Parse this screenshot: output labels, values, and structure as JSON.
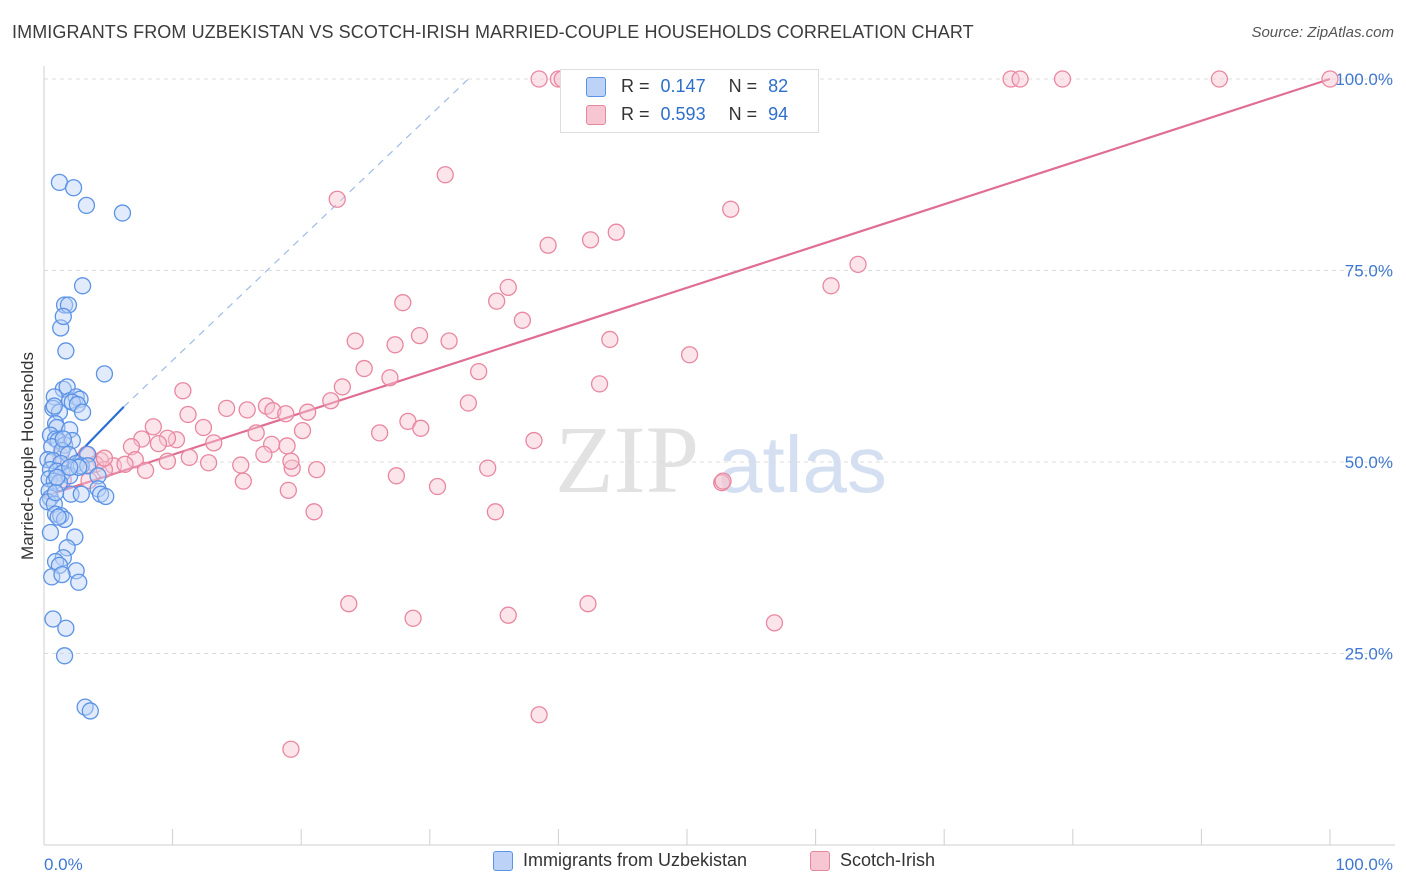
{
  "title": "IMMIGRANTS FROM UZBEKISTAN VS SCOTCH-IRISH MARRIED-COUPLE HOUSEHOLDS CORRELATION CHART",
  "source": "Source: ZipAtlas.com",
  "watermark": {
    "zip": "ZIP",
    "atlas": "atlas"
  },
  "colors": {
    "blue": "#5b93e6",
    "blue_fill": "#bcd3f7",
    "blue_line": "#2a6fd6",
    "pink": "#e9879f",
    "pink_fill": "#f7c6d3",
    "pink_line": "#e06e93",
    "tick_text": "#3f78d0"
  },
  "stats": [
    {
      "r_label": "R =",
      "r_value": "0.147",
      "n_label": "N =",
      "n_value": "82",
      "series": "Immigrants from Uzbekistan"
    },
    {
      "r_label": "R =",
      "r_value": "0.593",
      "n_label": "N =",
      "n_value": "94",
      "series": "Scotch-Irish"
    }
  ],
  "chart_data": {
    "type": "scatter",
    "title": "IMMIGRANTS FROM UZBEKISTAN VS SCOTCH-IRISH MARRIED-COUPLE HOUSEHOLDS CORRELATION CHART",
    "xlabel": "",
    "ylabel": "Married-couple Households",
    "xlim": [
      0,
      100
    ],
    "ylim": [
      0,
      100
    ],
    "x_tick_labels": [
      "0.0%",
      "100.0%"
    ],
    "y_tick_labels": [
      "25.0%",
      "50.0%",
      "75.0%",
      "100.0%"
    ],
    "y_ticks": [
      25,
      50,
      75,
      100
    ],
    "grid": true,
    "legend": "bottom",
    "series": [
      {
        "name": "Immigrants from Uzbekistan",
        "trend": {
          "x": [
            0.3,
            6.2
          ],
          "y": [
            47.0,
            57.2
          ],
          "extended_dashed_to": [
            33.0,
            100.0
          ]
        },
        "points": [
          [
            1.2,
            86.5
          ],
          [
            2.3,
            85.8
          ],
          [
            3.3,
            83.5
          ],
          [
            6.1,
            82.5
          ],
          [
            3.0,
            73.0
          ],
          [
            1.6,
            70.5
          ],
          [
            1.9,
            70.5
          ],
          [
            1.3,
            67.5
          ],
          [
            1.5,
            69.0
          ],
          [
            1.7,
            64.5
          ],
          [
            4.7,
            61.5
          ],
          [
            1.5,
            59.5
          ],
          [
            1.8,
            59.8
          ],
          [
            0.8,
            58.5
          ],
          [
            2.0,
            58.0
          ],
          [
            2.5,
            58.5
          ],
          [
            2.8,
            58.2
          ],
          [
            0.7,
            57.0
          ],
          [
            1.2,
            56.5
          ],
          [
            2.2,
            57.8
          ],
          [
            2.6,
            57.5
          ],
          [
            3.0,
            56.5
          ],
          [
            0.9,
            55.0
          ],
          [
            1.0,
            54.5
          ],
          [
            2.0,
            54.2
          ],
          [
            0.5,
            53.5
          ],
          [
            0.9,
            53.0
          ],
          [
            1.1,
            52.8
          ],
          [
            1.6,
            52.2
          ],
          [
            2.2,
            52.8
          ],
          [
            0.6,
            52.0
          ],
          [
            1.4,
            51.5
          ],
          [
            1.9,
            51.0
          ],
          [
            3.4,
            51.0
          ],
          [
            0.3,
            50.3
          ],
          [
            0.7,
            50.2
          ],
          [
            1.3,
            49.8
          ],
          [
            2.5,
            49.8
          ],
          [
            2.9,
            49.5
          ],
          [
            3.4,
            49.5
          ],
          [
            0.5,
            49.0
          ],
          [
            1.0,
            48.8
          ],
          [
            1.4,
            48.5
          ],
          [
            2.0,
            48.2
          ],
          [
            4.2,
            48.2
          ],
          [
            0.4,
            47.8
          ],
          [
            0.8,
            47.5
          ],
          [
            1.2,
            47.3
          ],
          [
            0.4,
            46.2
          ],
          [
            4.2,
            46.5
          ],
          [
            2.1,
            45.8
          ],
          [
            2.9,
            45.8
          ],
          [
            4.4,
            45.8
          ],
          [
            4.8,
            45.5
          ],
          [
            0.5,
            45.3
          ],
          [
            0.3,
            44.8
          ],
          [
            0.8,
            44.5
          ],
          [
            0.9,
            43.2
          ],
          [
            1.3,
            43.0
          ],
          [
            1.6,
            42.5
          ],
          [
            1.1,
            42.8
          ],
          [
            0.5,
            40.8
          ],
          [
            2.4,
            40.2
          ],
          [
            1.8,
            38.8
          ],
          [
            1.5,
            37.5
          ],
          [
            0.9,
            37.0
          ],
          [
            1.2,
            36.5
          ],
          [
            0.6,
            35.0
          ],
          [
            2.5,
            35.8
          ],
          [
            1.4,
            35.3
          ],
          [
            2.7,
            34.3
          ],
          [
            0.7,
            29.5
          ],
          [
            1.7,
            28.3
          ],
          [
            1.6,
            24.7
          ],
          [
            3.2,
            18.0
          ],
          [
            3.6,
            17.5
          ],
          [
            0.9,
            46.0
          ],
          [
            2.7,
            49.3
          ],
          [
            1.0,
            48.0
          ],
          [
            1.5,
            53.0
          ],
          [
            2.0,
            49.3
          ],
          [
            0.8,
            57.3
          ]
        ]
      },
      {
        "name": "Scotch-Irish",
        "trend": {
          "x": [
            0,
            100
          ],
          "y": [
            45.5,
            100.0
          ]
        },
        "points": [
          [
            38.5,
            100
          ],
          [
            40.0,
            100
          ],
          [
            40.3,
            100
          ],
          [
            55.8,
            100
          ],
          [
            75.2,
            100
          ],
          [
            75.9,
            100
          ],
          [
            79.2,
            100
          ],
          [
            91.4,
            100
          ],
          [
            100.0,
            100
          ],
          [
            31.2,
            87.5
          ],
          [
            22.8,
            84.3
          ],
          [
            53.4,
            83.0
          ],
          [
            44.5,
            80.0
          ],
          [
            42.5,
            79.0
          ],
          [
            39.2,
            78.3
          ],
          [
            63.3,
            75.8
          ],
          [
            61.2,
            73.0
          ],
          [
            36.1,
            72.8
          ],
          [
            35.2,
            71.0
          ],
          [
            27.9,
            70.8
          ],
          [
            37.2,
            68.5
          ],
          [
            29.2,
            66.5
          ],
          [
            31.5,
            65.8
          ],
          [
            44.0,
            66.0
          ],
          [
            24.2,
            65.8
          ],
          [
            27.3,
            65.3
          ],
          [
            50.2,
            64.0
          ],
          [
            24.9,
            62.2
          ],
          [
            33.8,
            61.8
          ],
          [
            26.9,
            61.0
          ],
          [
            43.2,
            60.2
          ],
          [
            10.8,
            59.3
          ],
          [
            23.2,
            59.8
          ],
          [
            22.3,
            58.0
          ],
          [
            33.0,
            57.7
          ],
          [
            14.2,
            57.0
          ],
          [
            17.3,
            57.3
          ],
          [
            15.8,
            56.8
          ],
          [
            20.5,
            56.5
          ],
          [
            17.8,
            56.7
          ],
          [
            11.2,
            56.2
          ],
          [
            18.8,
            56.3
          ],
          [
            28.3,
            55.3
          ],
          [
            8.5,
            54.6
          ],
          [
            12.4,
            54.5
          ],
          [
            29.3,
            54.4
          ],
          [
            20.1,
            54.1
          ],
          [
            26.1,
            53.8
          ],
          [
            16.5,
            53.8
          ],
          [
            7.6,
            53.0
          ],
          [
            10.3,
            52.9
          ],
          [
            9.6,
            53.1
          ],
          [
            8.9,
            52.4
          ],
          [
            13.2,
            52.5
          ],
          [
            17.7,
            52.3
          ],
          [
            18.9,
            52.1
          ],
          [
            6.8,
            52.0
          ],
          [
            38.1,
            52.8
          ],
          [
            17.1,
            51.0
          ],
          [
            3.3,
            51.0
          ],
          [
            1.3,
            50.8
          ],
          [
            11.3,
            50.6
          ],
          [
            7.1,
            50.3
          ],
          [
            4.4,
            50.2
          ],
          [
            9.6,
            50.1
          ],
          [
            4.0,
            49.7
          ],
          [
            5.4,
            49.5
          ],
          [
            6.3,
            49.7
          ],
          [
            15.3,
            49.6
          ],
          [
            12.8,
            49.9
          ],
          [
            7.9,
            48.9
          ],
          [
            19.3,
            49.2
          ],
          [
            34.5,
            49.2
          ],
          [
            19.2,
            50.1
          ],
          [
            4.7,
            49.0
          ],
          [
            21.2,
            49.0
          ],
          [
            15.5,
            47.5
          ],
          [
            3.5,
            47.6
          ],
          [
            52.7,
            47.3
          ],
          [
            30.6,
            46.8
          ],
          [
            19.0,
            46.3
          ],
          [
            35.1,
            43.5
          ],
          [
            21.0,
            43.5
          ],
          [
            23.7,
            31.5
          ],
          [
            42.3,
            31.5
          ],
          [
            36.1,
            30.0
          ],
          [
            28.7,
            29.6
          ],
          [
            56.8,
            29.0
          ],
          [
            38.5,
            17.0
          ],
          [
            19.2,
            12.5
          ],
          [
            52.8,
            47.5
          ],
          [
            4.7,
            50.5
          ],
          [
            1.5,
            47.7
          ],
          [
            27.4,
            48.2
          ]
        ]
      }
    ]
  }
}
